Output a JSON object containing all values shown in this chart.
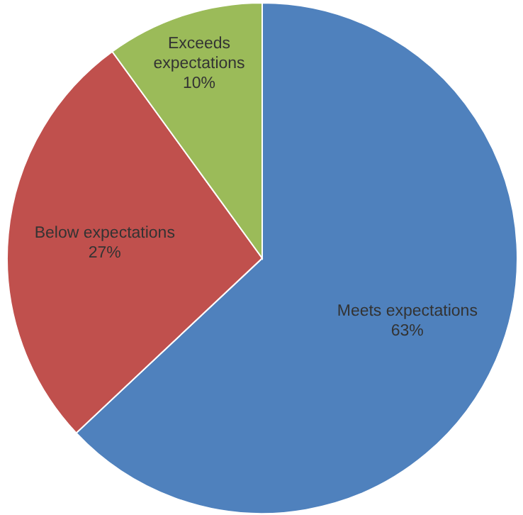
{
  "chart_data": {
    "type": "pie",
    "categories": [
      "Meets expectations",
      "Below expectations",
      "Exceeds expectations"
    ],
    "values": [
      63,
      27,
      10
    ],
    "colors": [
      "#4f81bd",
      "#c0504d",
      "#9bbb59"
    ],
    "value_labels": [
      "63%",
      "27%",
      "10%"
    ]
  }
}
